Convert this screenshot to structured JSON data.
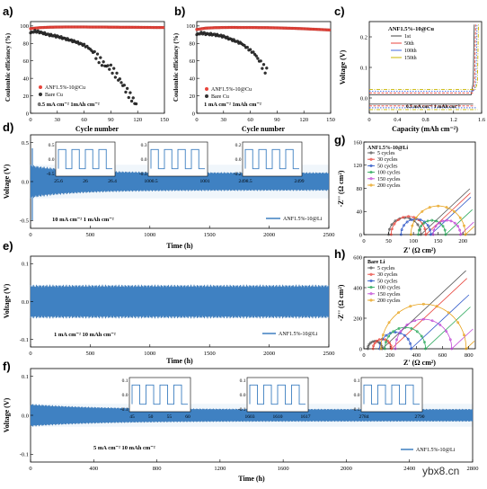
{
  "panel_letters": [
    "a)",
    "b)",
    "c)",
    "d)",
    "e)",
    "f)",
    "g)",
    "h)"
  ],
  "watermark": "ybx8.cn",
  "chart_data": [
    {
      "id": "a",
      "type": "scatter",
      "xlabel": "Cycle number",
      "ylabel": "Coulombic efficiency (%)",
      "xlim": [
        0,
        150
      ],
      "ylim": [
        0,
        105
      ],
      "xticks": [
        0,
        30,
        60,
        90,
        120,
        150
      ],
      "yticks": [
        0,
        20,
        40,
        60,
        80,
        100
      ],
      "annotation": "0.5 mA cm⁻² 1mAh cm⁻²",
      "series": [
        {
          "name": "ANF1.5%-10@Cu",
          "color": "#e8453c",
          "x": [
            0,
            10,
            20,
            30,
            40,
            50,
            60,
            70,
            80,
            90,
            100,
            110,
            120,
            130,
            140,
            150
          ],
          "y": [
            97,
            98,
            98.5,
            98.7,
            98.8,
            98.8,
            98.8,
            98.7,
            98.7,
            98.6,
            98.5,
            98.5,
            98.4,
            98.3,
            98.2,
            98.2
          ]
        },
        {
          "name": "Bare Cu",
          "color": "#333333",
          "x": [
            0,
            5,
            10,
            20,
            30,
            40,
            50,
            60,
            65,
            70,
            75,
            80,
            85,
            90,
            95,
            100,
            105,
            110,
            115,
            120
          ],
          "y": [
            92,
            94,
            93,
            90,
            88,
            85,
            82,
            78,
            75,
            70,
            64,
            58,
            54,
            52,
            45,
            38,
            30,
            22,
            15,
            8
          ]
        }
      ]
    },
    {
      "id": "b",
      "type": "scatter",
      "xlabel": "Cycle number",
      "ylabel": "Coulombic efficiency (%)",
      "xlim": [
        0,
        150
      ],
      "ylim": [
        0,
        105
      ],
      "xticks": [
        0,
        30,
        60,
        90,
        120,
        150
      ],
      "yticks": [
        0,
        20,
        40,
        60,
        80,
        100
      ],
      "annotation": "1 mA cm⁻² 1mAh cm⁻²",
      "series": [
        {
          "name": "ANF1.5%-10@Cu",
          "color": "#e8453c",
          "x": [
            0,
            10,
            20,
            30,
            40,
            50,
            60,
            70,
            80,
            90,
            100,
            110,
            120,
            130,
            140,
            150
          ],
          "y": [
            96,
            97.5,
            98,
            98.2,
            98.3,
            98.2,
            98.2,
            98.1,
            98,
            97.8,
            97.5,
            97.2,
            96.8,
            96.3,
            95.8,
            95.3
          ]
        },
        {
          "name": "Bare Cu",
          "color": "#333333",
          "x": [
            0,
            5,
            10,
            20,
            30,
            40,
            50,
            55,
            60,
            65,
            70,
            75,
            80
          ],
          "y": [
            90,
            92,
            91,
            90,
            88,
            84,
            80,
            76,
            72,
            68,
            60,
            52,
            46
          ]
        }
      ]
    },
    {
      "id": "c",
      "type": "line",
      "xlabel": "Capacity (mAh cm⁻²)",
      "ylabel": "Voltage (V)",
      "xlim": [
        0,
        1.6
      ],
      "ylim": [
        -0.05,
        0.25
      ],
      "xticks": [
        0.0,
        0.4,
        0.8,
        1.2,
        1.6
      ],
      "yticks": [
        0.0,
        0.1,
        0.2
      ],
      "title": "ANF1.5%-10@Cu",
      "annotation": "0.5 mA cm⁻² 1 mAh cm⁻²",
      "series": [
        {
          "name": "1st",
          "color": "#444444"
        },
        {
          "name": "50th",
          "color": "#e8453c"
        },
        {
          "name": "100th",
          "color": "#4169e1"
        },
        {
          "name": "150th",
          "color": "#c8b400"
        }
      ]
    },
    {
      "id": "d",
      "type": "line",
      "xlabel": "Time (h)",
      "ylabel": "Voltage (V)",
      "xlim": [
        0,
        2500
      ],
      "ylim": [
        -0.6,
        0.6
      ],
      "xticks": [
        0,
        500,
        1000,
        1500,
        2000,
        2500
      ],
      "yticks": [
        -0.5,
        0.0,
        0.5
      ],
      "annotation": "10 mA cm⁻² 1 mAh cm⁻²",
      "series": [
        {
          "name": "ANF1.5%-10@Li",
          "color": "#3d7fc1"
        }
      ],
      "insets": [
        {
          "xticks": [
            25.6,
            26.0,
            26.4
          ],
          "yticks": [
            0.5,
            0.0,
            -0.5
          ]
        },
        {
          "xticks": [
            1000.5,
            1001.0
          ],
          "yticks": [
            0.3,
            0.0,
            -0.3
          ]
        },
        {
          "xticks": [
            2498.5,
            2499.0
          ],
          "yticks": [
            0.2,
            0.0,
            -0.2
          ]
        }
      ]
    },
    {
      "id": "e",
      "type": "line",
      "xlabel": "Time (h)",
      "ylabel": "Voltage (V)",
      "xlim": [
        0,
        2500
      ],
      "ylim": [
        -0.12,
        0.12
      ],
      "xticks": [
        0,
        500,
        1000,
        1500,
        2000,
        2500
      ],
      "yticks": [
        0.1,
        0.0,
        -0.1
      ],
      "annotation": "1 mA cm⁻² 10 mAh cm⁻²",
      "series": [
        {
          "name": "ANF1.5%-10@Li",
          "color": "#3d7fc1"
        }
      ]
    },
    {
      "id": "f",
      "type": "line",
      "xlabel": "Time (h)",
      "ylabel": "Voltage (V)",
      "xlim": [
        0,
        2800
      ],
      "ylim": [
        -0.12,
        0.12
      ],
      "xticks": [
        0,
        400,
        800,
        1200,
        1600,
        2000,
        2400,
        2800
      ],
      "yticks": [
        0.1,
        0.0,
        -0.1
      ],
      "annotation": "5 mA cm⁻² 10 mAh cm⁻²",
      "series": [
        {
          "name": "ANF1.5%-10@Li",
          "color": "#3d7fc1"
        }
      ],
      "insets": [
        {
          "xticks": [
            45,
            50,
            55,
            60
          ],
          "yticks": [
            0.1,
            0.0,
            -0.1
          ]
        },
        {
          "xticks": [
            1603,
            1610,
            1617
          ],
          "yticks": [
            0.1,
            0.0,
            -0.1
          ]
        },
        {
          "xticks": [
            2784,
            2790
          ],
          "yticks": [
            0.1,
            0.0,
            -0.1
          ]
        }
      ]
    },
    {
      "id": "g",
      "type": "line",
      "xlabel": "Z' (Ω cm²)",
      "ylabel": "-Z'' (Ω cm²)",
      "xlim": [
        0,
        225
      ],
      "ylim": [
        0,
        160
      ],
      "xticks": [
        0,
        50,
        100,
        150,
        200
      ],
      "yticks": [
        0,
        40,
        80,
        120,
        160
      ],
      "title": "ANF1.5%-10@Li",
      "series": [
        {
          "name": "5 cycles",
          "color": "#555555",
          "start": 50,
          "diameter": 65
        },
        {
          "name": "30 cycles",
          "color": "#e8453c",
          "start": 55,
          "diameter": 70
        },
        {
          "name": "50 cycles",
          "color": "#2e58c8",
          "start": 75,
          "diameter": 60
        },
        {
          "name": "100 cycles",
          "color": "#2aa85a",
          "start": 110,
          "diameter": 55
        },
        {
          "name": "150 cycles",
          "color": "#c04ad6",
          "start": 140,
          "diameter": 55
        },
        {
          "name": "200 cycles",
          "color": "#e8a21a",
          "start": 95,
          "diameter": 110
        }
      ]
    },
    {
      "id": "h",
      "type": "line",
      "xlabel": "Z' (Ω cm²)",
      "ylabel": "-Z'' (Ω cm²)",
      "xlim": [
        0,
        850
      ],
      "ylim": [
        0,
        600
      ],
      "xticks": [
        0,
        200,
        400,
        600,
        800
      ],
      "yticks": [
        0,
        200,
        400,
        600
      ],
      "title": "Bare Li",
      "series": [
        {
          "name": "5 cycles",
          "color": "#555555",
          "start": 30,
          "diameter": 110
        },
        {
          "name": "30 cycles",
          "color": "#e8453c",
          "start": 70,
          "diameter": 140
        },
        {
          "name": "50 cycles",
          "color": "#2e58c8",
          "start": 120,
          "diameter": 240
        },
        {
          "name": "100 cycles",
          "color": "#2aa85a",
          "start": 160,
          "diameter": 310
        },
        {
          "name": "150 cycles",
          "color": "#c04ad6",
          "start": 240,
          "diameter": 430
        },
        {
          "name": "200 cycles",
          "color": "#e8a21a",
          "start": 130,
          "diameter": 650
        }
      ]
    }
  ]
}
